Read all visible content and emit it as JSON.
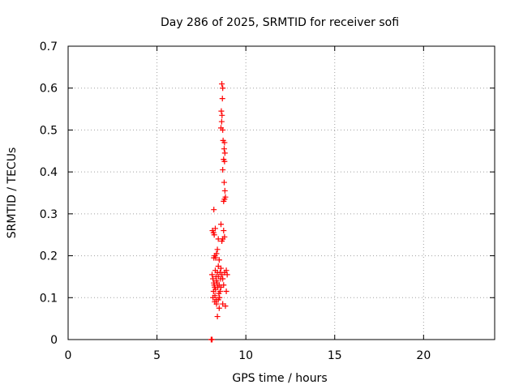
{
  "chart_data": {
    "type": "scatter",
    "title": "Day 286 of 2025, SRMTID for receiver sofi",
    "xlabel": "GPS time / hours",
    "ylabel": "SRMTID / TECUs",
    "xlim": [
      0,
      24
    ],
    "ylim": [
      0,
      0.7
    ],
    "xticks": [
      0,
      5,
      10,
      15,
      20
    ],
    "yticks": [
      0,
      0.1,
      0.2,
      0.3,
      0.4,
      0.5,
      0.6,
      0.7
    ],
    "grid": true,
    "marker": "+",
    "color": "#ff0000",
    "series": [
      {
        "name": "SRMTID",
        "points": [
          [
            8.05,
            0.0
          ],
          [
            8.08,
            0.0
          ],
          [
            8.1,
            0.0
          ],
          [
            8.2,
            0.31
          ],
          [
            8.12,
            0.26
          ],
          [
            8.18,
            0.255
          ],
          [
            8.22,
            0.25
          ],
          [
            8.28,
            0.265
          ],
          [
            8.25,
            0.2
          ],
          [
            8.3,
            0.195
          ],
          [
            8.35,
            0.205
          ],
          [
            8.2,
            0.195
          ],
          [
            8.4,
            0.215
          ],
          [
            8.5,
            0.19
          ],
          [
            8.6,
            0.275
          ],
          [
            8.7,
            0.24
          ],
          [
            8.65,
            0.235
          ],
          [
            8.8,
            0.245
          ],
          [
            8.75,
            0.26
          ],
          [
            8.45,
            0.24
          ],
          [
            8.1,
            0.155
          ],
          [
            8.15,
            0.145
          ],
          [
            8.2,
            0.135
          ],
          [
            8.25,
            0.125
          ],
          [
            8.3,
            0.12
          ],
          [
            8.35,
            0.14
          ],
          [
            8.4,
            0.16
          ],
          [
            8.45,
            0.15
          ],
          [
            8.5,
            0.13
          ],
          [
            8.55,
            0.115
          ],
          [
            8.6,
            0.17
          ],
          [
            8.65,
            0.155
          ],
          [
            8.28,
            0.165
          ],
          [
            8.32,
            0.15
          ],
          [
            8.38,
            0.135
          ],
          [
            8.42,
            0.125
          ],
          [
            8.48,
            0.11
          ],
          [
            8.52,
            0.1
          ],
          [
            8.58,
            0.145
          ],
          [
            8.22,
            0.13
          ],
          [
            8.18,
            0.115
          ],
          [
            8.26,
            0.105
          ],
          [
            8.34,
            0.095
          ],
          [
            8.15,
            0.1
          ],
          [
            8.25,
            0.09
          ],
          [
            8.35,
            0.085
          ],
          [
            8.45,
            0.095
          ],
          [
            8.5,
            0.075
          ],
          [
            8.4,
            0.055
          ],
          [
            8.7,
            0.085
          ],
          [
            8.85,
            0.08
          ],
          [
            8.9,
            0.115
          ],
          [
            8.9,
            0.165
          ],
          [
            8.95,
            0.155
          ],
          [
            8.8,
            0.16
          ],
          [
            8.75,
            0.13
          ],
          [
            8.7,
            0.145
          ],
          [
            8.6,
            0.125
          ],
          [
            8.55,
            0.16
          ],
          [
            8.45,
            0.175
          ],
          [
            8.65,
            0.61
          ],
          [
            8.7,
            0.6
          ],
          [
            8.68,
            0.575
          ],
          [
            8.62,
            0.545
          ],
          [
            8.66,
            0.535
          ],
          [
            8.64,
            0.52
          ],
          [
            8.7,
            0.5
          ],
          [
            8.6,
            0.505
          ],
          [
            8.72,
            0.475
          ],
          [
            8.8,
            0.47
          ],
          [
            8.78,
            0.455
          ],
          [
            8.82,
            0.445
          ],
          [
            8.75,
            0.43
          ],
          [
            8.8,
            0.425
          ],
          [
            8.7,
            0.405
          ],
          [
            8.78,
            0.375
          ],
          [
            8.82,
            0.355
          ],
          [
            8.85,
            0.34
          ],
          [
            8.8,
            0.335
          ],
          [
            8.75,
            0.33
          ]
        ]
      }
    ]
  }
}
